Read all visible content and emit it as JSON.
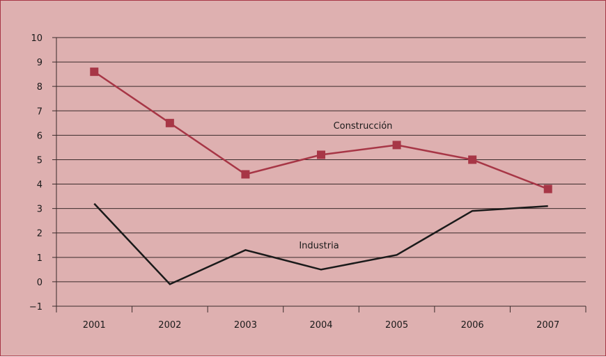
{
  "chart_data": {
    "type": "line",
    "title": "",
    "xlabel": "",
    "ylabel": "",
    "categories": [
      "2001",
      "2002",
      "2003",
      "2004",
      "2005",
      "2006",
      "2007"
    ],
    "ylim": [
      -1,
      10
    ],
    "yticks": [
      "−1",
      "0",
      "1",
      "2",
      "3",
      "4",
      "5",
      "6",
      "7",
      "8",
      "9",
      "10"
    ],
    "grid": true,
    "legend": "none (series labelled inline)",
    "series": [
      {
        "name": "Construcción",
        "values": [
          8.6,
          6.5,
          4.4,
          5.2,
          5.6,
          5.0,
          3.8
        ],
        "color": "#a73646",
        "marker": "square"
      },
      {
        "name": "Industria",
        "values": [
          3.2,
          -0.1,
          1.3,
          0.5,
          1.1,
          2.9,
          3.1
        ],
        "color": "#1a1a1a",
        "marker": "none"
      }
    ]
  },
  "colors": {
    "background": "#deb0b0",
    "border": "#a73646",
    "grid": "#3a2a2a"
  }
}
